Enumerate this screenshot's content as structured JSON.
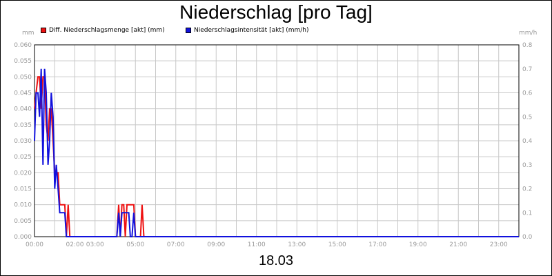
{
  "chart_data": {
    "type": "line",
    "title": "Niederschlag [pro Tag]",
    "date_label": "18.03",
    "y_left": {
      "unit": "mm",
      "ylim": [
        0,
        0.06
      ],
      "ticks": [
        "0.000",
        "0.005",
        "0.010",
        "0.015",
        "0.020",
        "0.025",
        "0.030",
        "0.035",
        "0.040",
        "0.045",
        "0.050",
        "0.055",
        "0.060"
      ]
    },
    "y_right": {
      "unit": "mm/h",
      "ylim": [
        0,
        0.8
      ],
      "ticks": [
        "0.0",
        "0.1",
        "0.2",
        "0.3",
        "0.4",
        "0.5",
        "0.6",
        "0.7",
        "0.8"
      ]
    },
    "x_axis": {
      "range_hours": [
        0,
        24
      ],
      "tick_labels": [
        {
          "h": 0,
          "label": "00:00"
        },
        {
          "h": 2,
          "label": "02:00"
        },
        {
          "h": 3,
          "label": "03:00"
        },
        {
          "h": 5,
          "label": "05:00"
        },
        {
          "h": 7,
          "label": "07:00"
        },
        {
          "h": 9,
          "label": "09:00"
        },
        {
          "h": 11,
          "label": "11:00"
        },
        {
          "h": 13,
          "label": "13:00"
        },
        {
          "h": 15,
          "label": "15:00"
        },
        {
          "h": 17,
          "label": "17:00"
        },
        {
          "h": 19,
          "label": "19:00"
        },
        {
          "h": 21,
          "label": "21:00"
        },
        {
          "h": 23,
          "label": "23:00"
        }
      ]
    },
    "grid": true,
    "legend_position": "top-left",
    "series": [
      {
        "name": "Diff. Niederschlagsmenge [akt] (mm)",
        "axis": "left",
        "color": "#ee1111",
        "x": [
          0,
          0.08,
          0.17,
          0.25,
          0.33,
          0.42,
          0.5,
          0.58,
          0.67,
          0.75,
          0.83,
          0.92,
          1,
          1.08,
          1.17,
          1.25,
          1.33,
          1.42,
          1.5,
          1.58,
          1.67,
          1.75,
          1.83,
          1.92,
          2,
          2.08,
          4,
          4.08,
          4.17,
          4.25,
          4.33,
          4.42,
          4.5,
          4.58,
          4.67,
          4.75,
          4.83,
          4.92,
          5,
          5.08,
          5.17,
          5.25,
          5.33,
          5.42,
          5.5,
          24
        ],
        "y": [
          0.04,
          0.045,
          0.05,
          0.05,
          0.04,
          0.05,
          0.05,
          0.035,
          0.03,
          0.04,
          0.04,
          0.03,
          0.02,
          0.02,
          0.02,
          0.01,
          0.01,
          0.01,
          0.01,
          0,
          0.01,
          0,
          0,
          0,
          0,
          0,
          0,
          0,
          0.01,
          0,
          0.01,
          0.01,
          0,
          0.01,
          0.01,
          0.01,
          0.01,
          0.01,
          0,
          0,
          0,
          0,
          0.01,
          0,
          0,
          0
        ]
      },
      {
        "name": "Niederschlagsintensität [akt] (mm/h)",
        "axis": "right",
        "color": "#1111dd",
        "x": [
          0,
          0.08,
          0.17,
          0.25,
          0.33,
          0.42,
          0.5,
          0.58,
          0.67,
          0.75,
          0.83,
          0.92,
          1,
          1.08,
          1.17,
          1.25,
          1.33,
          1.42,
          1.5,
          1.58,
          1.67,
          1.75,
          1.83,
          1.92,
          2,
          2.08,
          4,
          4.08,
          4.17,
          4.25,
          4.33,
          4.42,
          4.5,
          4.58,
          4.67,
          4.75,
          4.83,
          4.92,
          5,
          5.08,
          5.17,
          5.25,
          5.33,
          5.42,
          5.5,
          24
        ],
        "y": [
          0.4,
          0.6,
          0.6,
          0.5,
          0.7,
          0.3,
          0.7,
          0.6,
          0.3,
          0.4,
          0.6,
          0.5,
          0.2,
          0.3,
          0.2,
          0.1,
          0.1,
          0.1,
          0.1,
          0,
          0,
          0,
          0,
          0,
          0,
          0,
          0,
          0,
          0.1,
          0,
          0.1,
          0.1,
          0.1,
          0.1,
          0.1,
          0,
          0,
          0.1,
          0,
          0,
          0,
          0,
          0,
          0,
          0,
          0
        ]
      }
    ]
  }
}
